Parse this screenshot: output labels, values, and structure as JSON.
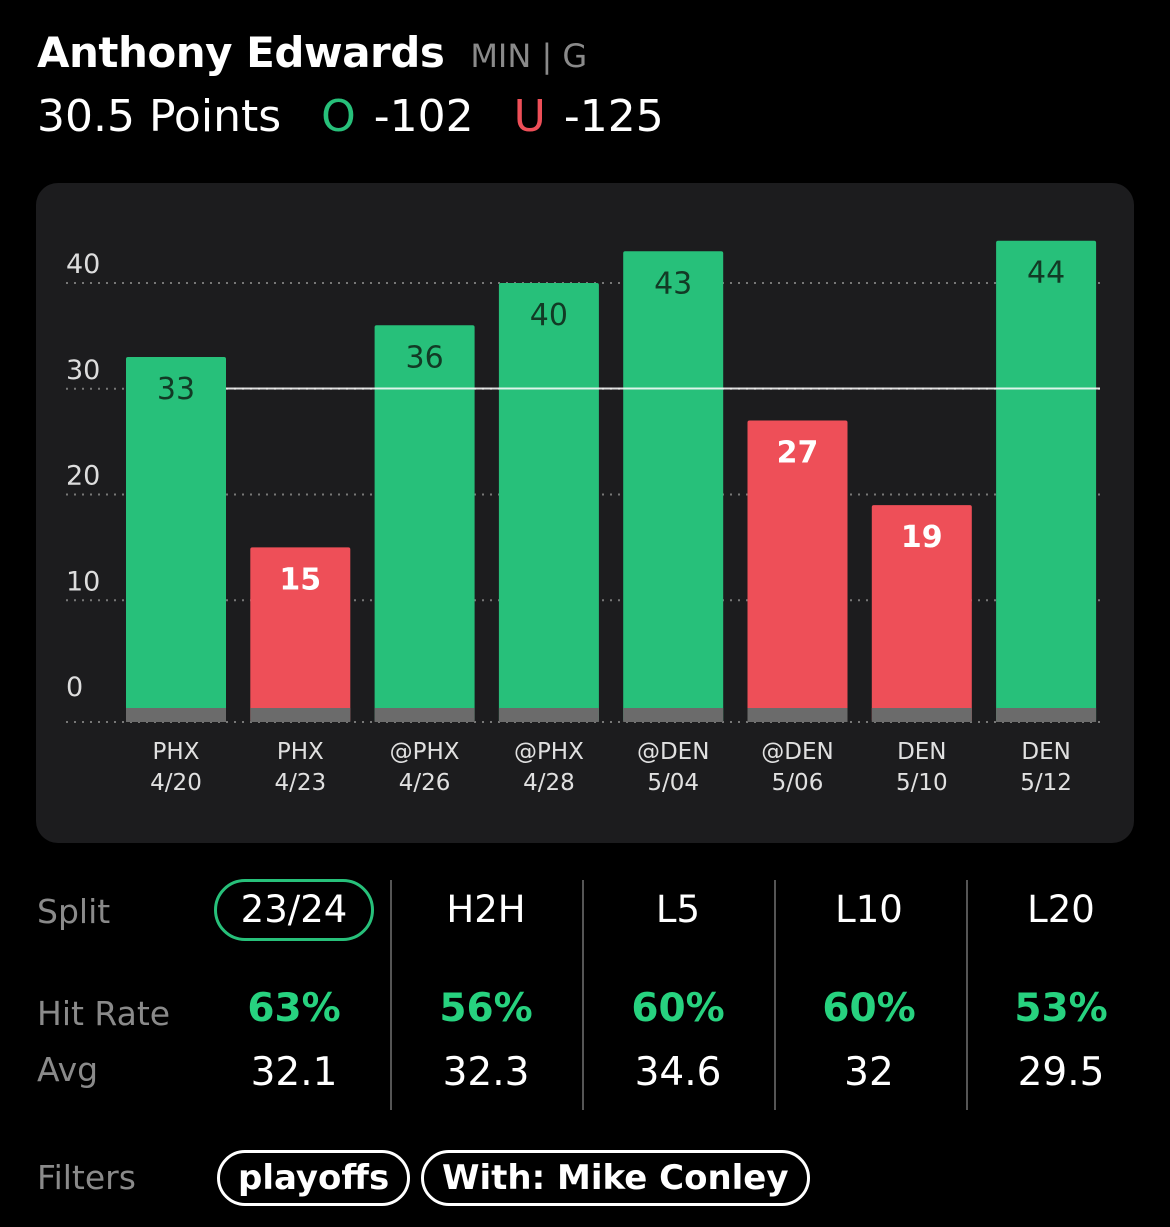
{
  "header": {
    "player_name": "Anthony Edwards",
    "team_pos": "MIN | G",
    "line": "30.5 Points",
    "over_symbol": "O",
    "over_odds": "-102",
    "under_symbol": "U",
    "under_odds": "-125"
  },
  "colors": {
    "over": "#27c07a",
    "under": "#ee4f58",
    "hit_text": "#27d27f",
    "card_bg": "#1c1c1e"
  },
  "chart_data": {
    "type": "bar",
    "categories": [
      "PHX 4/20",
      "PHX 4/23",
      "@PHX 4/26",
      "@PHX 4/28",
      "@DEN 5/04",
      "@DEN 5/06",
      "DEN 5/10",
      "DEN 5/12"
    ],
    "x_opponents": [
      "PHX",
      "PHX",
      "@PHX",
      "@PHX",
      "@DEN",
      "@DEN",
      "DEN",
      "DEN"
    ],
    "x_dates": [
      "4/20",
      "4/23",
      "4/26",
      "4/28",
      "5/04",
      "5/06",
      "5/10",
      "5/12"
    ],
    "values": [
      33,
      15,
      36,
      40,
      43,
      27,
      19,
      44
    ],
    "line_value": 30.5,
    "yticks": [
      0,
      10,
      20,
      30,
      40
    ],
    "ylim": [
      0,
      45
    ],
    "grid": true,
    "title": "",
    "xlabel": "",
    "ylabel": ""
  },
  "splits": {
    "row_labels": {
      "split": "Split",
      "hit_rate": "Hit Rate",
      "avg": "Avg"
    },
    "columns": [
      {
        "label": "23/24",
        "hit_rate": "63%",
        "avg": "32.1",
        "active": true
      },
      {
        "label": "H2H",
        "hit_rate": "56%",
        "avg": "32.3",
        "active": false
      },
      {
        "label": "L5",
        "hit_rate": "60%",
        "avg": "34.6",
        "active": false
      },
      {
        "label": "L10",
        "hit_rate": "60%",
        "avg": "32",
        "active": false
      },
      {
        "label": "L20",
        "hit_rate": "53%",
        "avg": "29.5",
        "active": false
      }
    ]
  },
  "filters": {
    "label": "Filters",
    "chips": [
      "playoffs",
      "With: Mike Conley"
    ]
  }
}
